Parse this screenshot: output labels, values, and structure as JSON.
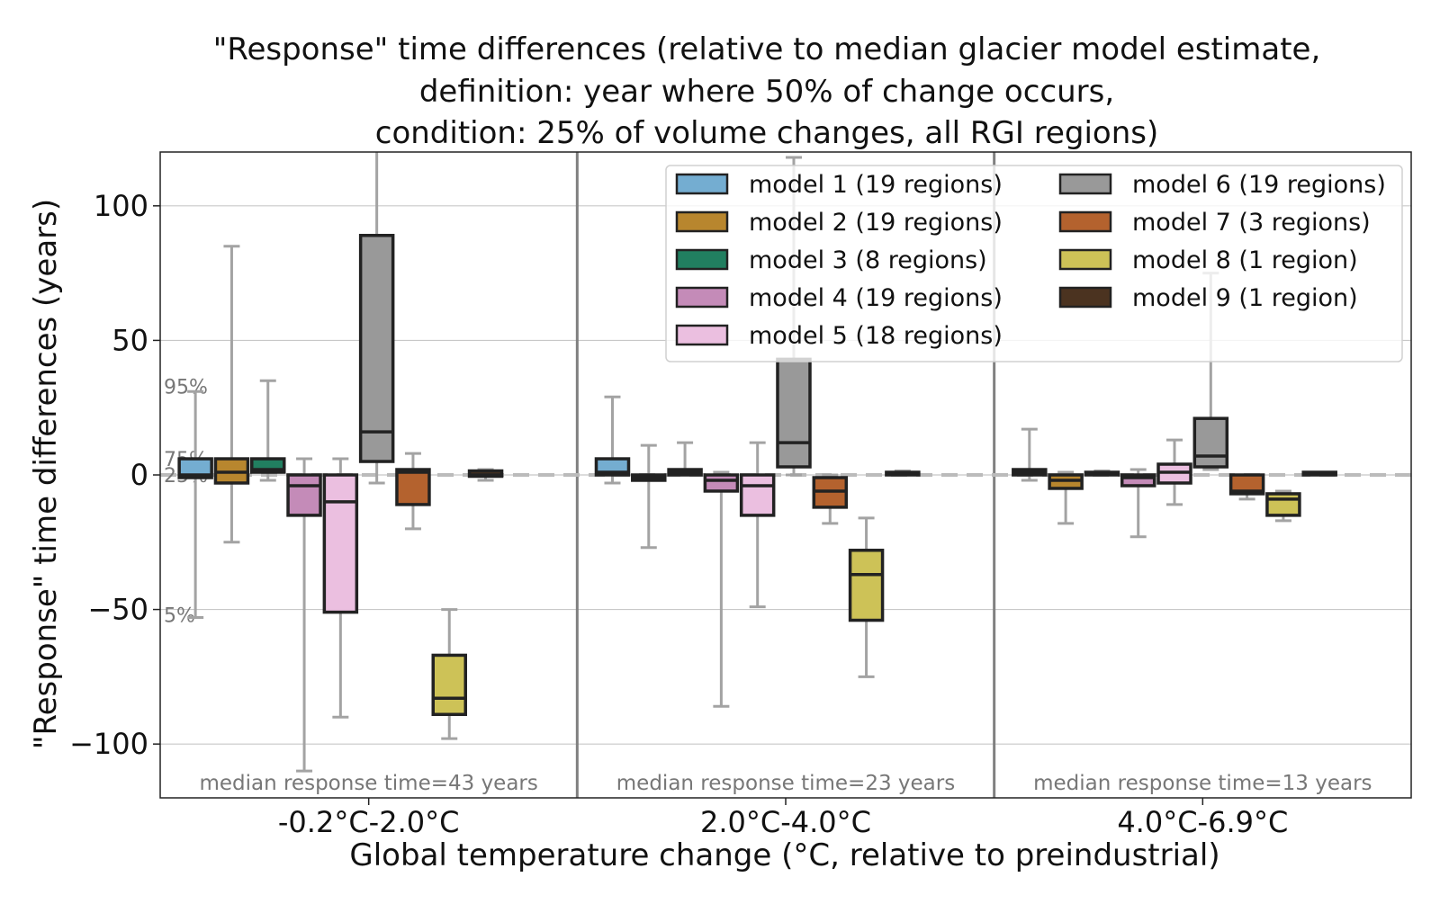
{
  "chart_data": {
    "type": "box",
    "title_lines": [
      "\"Response\" time differences (relative to median glacier model estimate,",
      "definition: year where 50% of change occurs,",
      "condition: 25% of volume changes, all RGI regions)"
    ],
    "xlabel": "Global temperature change (°C, relative to preindustrial)",
    "ylabel": "\"Response\" time differences (years)",
    "ylim": [
      -120,
      120
    ],
    "yticks": [
      -100,
      -50,
      0,
      50,
      100
    ],
    "ytick_labels": [
      "−100",
      "−50",
      "0",
      "50",
      "100"
    ],
    "grid": "horizontal",
    "reference_line": {
      "y": 0,
      "style": "dashed",
      "color": "#bbbbbb"
    },
    "percentile_annotations": [
      {
        "label": "95%",
        "y": 33
      },
      {
        "label": "75%",
        "y": 6
      },
      {
        "label": "25%",
        "y": 0
      },
      {
        "label": "5%",
        "y": -52
      }
    ],
    "categories": [
      "-0.2°C-2.0°C",
      "2.0°C-4.0°C",
      "4.0°C-6.9°C"
    ],
    "median_response_labels": [
      "median response time=43 years",
      "median response time=23 years",
      "median response time=13 years"
    ],
    "legend": {
      "position": "upper right",
      "columns": 2,
      "entries": [
        "model 1 (19 regions)",
        "model 2 (19 regions)",
        "model 3 (8 regions)",
        "model 4 (19 regions)",
        "model 5 (18 regions)",
        "model 6 (19 regions)",
        "model 7 (3 regions)",
        "model 8 (1 region)",
        "model 9 (1 region)"
      ]
    },
    "series": [
      {
        "color": "#74add1",
        "boxes": [
          {
            "whislo": -53,
            "q1": -1,
            "med": 0,
            "q3": 6,
            "whishi": 31
          },
          {
            "whislo": -3,
            "q1": 0,
            "med": 1,
            "q3": 6,
            "whishi": 29
          },
          {
            "whislo": -2,
            "q1": 0,
            "med": 1,
            "q3": 2,
            "whishi": 17
          }
        ]
      },
      {
        "color": "#b8862e",
        "boxes": [
          {
            "whislo": -25,
            "q1": -3,
            "med": 1,
            "q3": 6,
            "whishi": 85
          },
          {
            "whislo": -27,
            "q1": -2,
            "med": -1,
            "q3": 0,
            "whishi": 11
          },
          {
            "whislo": -18,
            "q1": -5,
            "med": -2,
            "q3": 0,
            "whishi": 1
          }
        ]
      },
      {
        "color": "#217f60",
        "boxes": [
          {
            "whislo": -2,
            "q1": 1,
            "med": 2,
            "q3": 6,
            "whishi": 35
          },
          {
            "whislo": 0,
            "q1": 0,
            "med": 1,
            "q3": 2,
            "whishi": 12
          },
          {
            "whislo": 0,
            "q1": 0,
            "med": 0.5,
            "q3": 1,
            "whishi": 1.5
          }
        ]
      },
      {
        "color": "#c48bb8",
        "boxes": [
          {
            "whislo": -110,
            "q1": -15,
            "med": -4,
            "q3": 0,
            "whishi": 6
          },
          {
            "whislo": -86,
            "q1": -6,
            "med": -2,
            "q3": 0,
            "whishi": 1
          },
          {
            "whislo": -23,
            "q1": -4,
            "med": -1,
            "q3": 0,
            "whishi": 2
          }
        ]
      },
      {
        "color": "#ebbfe0",
        "boxes": [
          {
            "whislo": -90,
            "q1": -51,
            "med": -10,
            "q3": 0,
            "whishi": 6
          },
          {
            "whislo": -49,
            "q1": -15,
            "med": -4,
            "q3": 0,
            "whishi": 12
          },
          {
            "whislo": -11,
            "q1": -3,
            "med": 1,
            "q3": 4,
            "whishi": 13
          }
        ]
      },
      {
        "color": "#999999",
        "boxes": [
          {
            "whislo": -3,
            "q1": 5,
            "med": 16,
            "q3": 89,
            "whishi": 120
          },
          {
            "whislo": 0,
            "q1": 3,
            "med": 12,
            "q3": 43,
            "whishi": 118
          },
          {
            "whislo": 2,
            "q1": 3,
            "med": 7,
            "q3": 21,
            "whishi": 75
          }
        ]
      },
      {
        "color": "#b4622e",
        "boxes": [
          {
            "whislo": -20,
            "q1": -11,
            "med": 1,
            "q3": 2,
            "whishi": 8
          },
          {
            "whislo": -18,
            "q1": -12,
            "med": -6,
            "q3": -1,
            "whishi": 0
          },
          {
            "whislo": -9,
            "q1": -7,
            "med": -6,
            "q3": 0,
            "whishi": 0
          }
        ]
      },
      {
        "color": "#cdc257",
        "boxes": [
          {
            "whislo": -98,
            "q1": -89,
            "med": -83,
            "q3": -67,
            "whishi": -50
          },
          {
            "whislo": -75,
            "q1": -54,
            "med": -37,
            "q3": -28,
            "whishi": -16
          },
          {
            "whislo": -17,
            "q1": -15,
            "med": -9,
            "q3": -7,
            "whishi": -6
          }
        ]
      },
      {
        "color": "#4b3320",
        "boxes": [
          {
            "whislo": -2,
            "q1": -0.5,
            "med": 0,
            "q3": 1.5,
            "whishi": 2
          },
          {
            "whislo": 0,
            "q1": 0,
            "med": 0.5,
            "q3": 1,
            "whishi": 1.5
          },
          {
            "whislo": 0,
            "q1": 0,
            "med": 0.5,
            "q3": 1,
            "whishi": 1
          }
        ]
      }
    ]
  }
}
